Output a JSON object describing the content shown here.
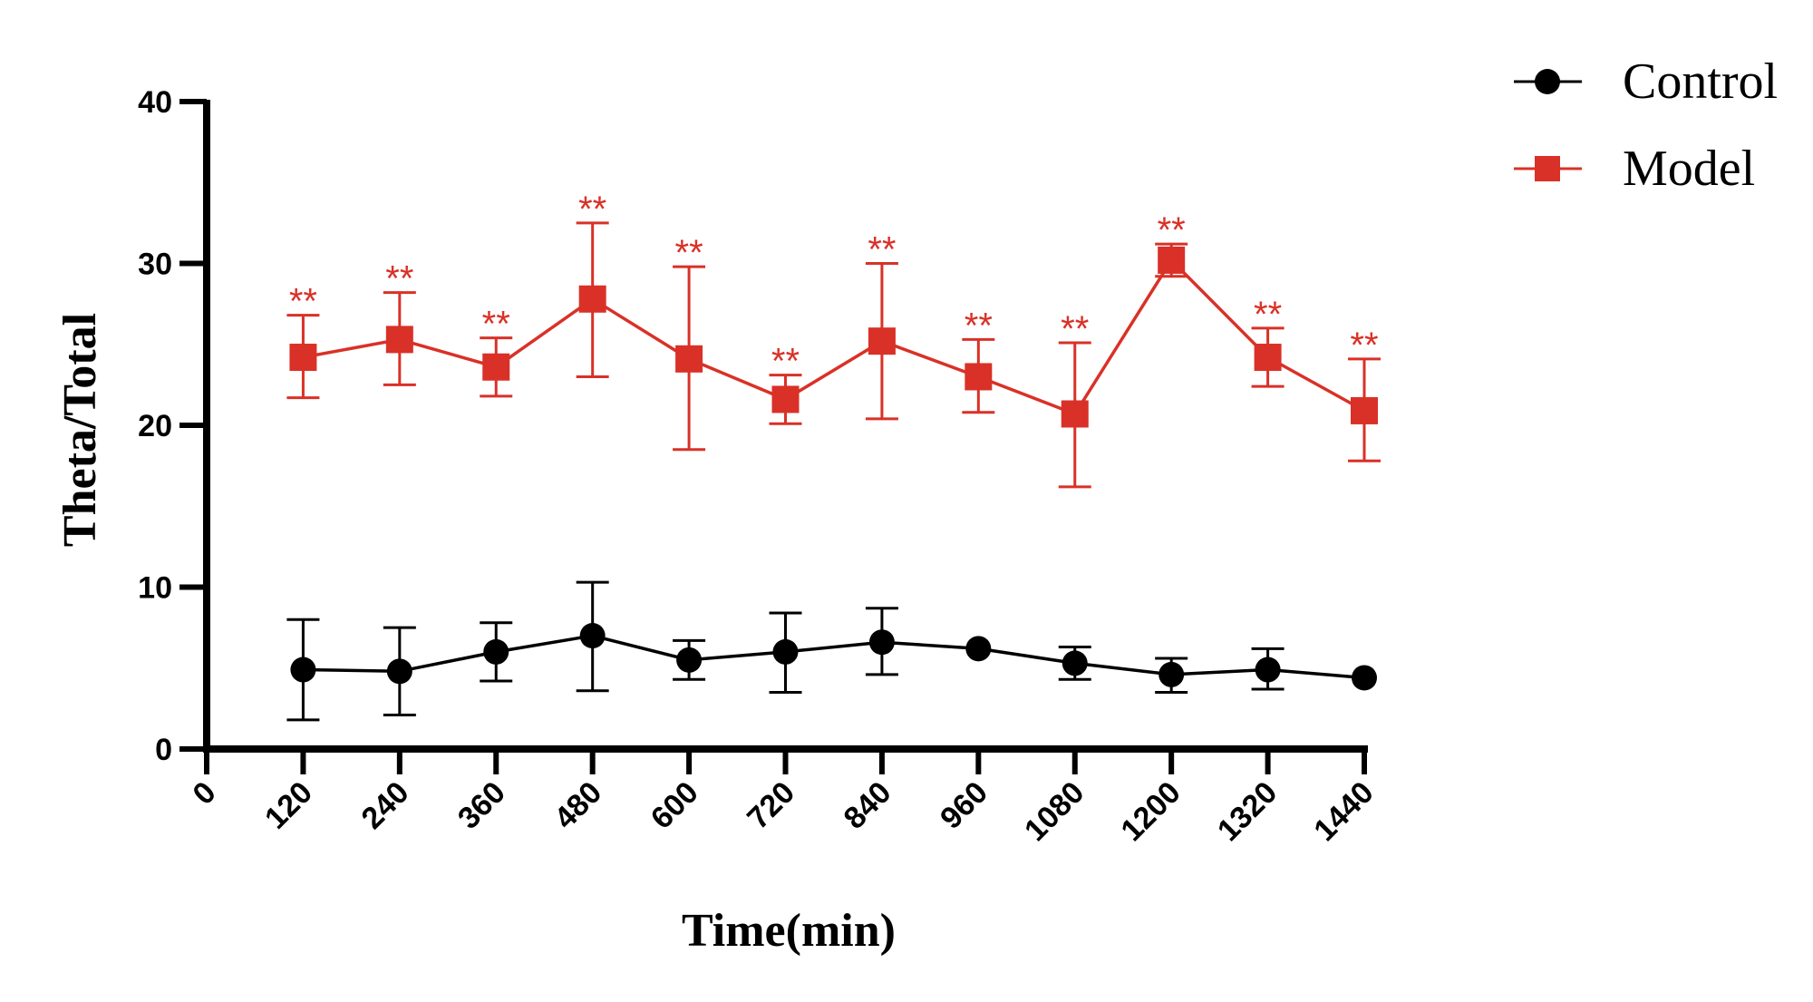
{
  "chart_data": {
    "type": "line",
    "title": "",
    "xlabel": "Time(min)",
    "ylabel": "Theta/Total",
    "xlim": [
      0,
      1440
    ],
    "ylim": [
      0,
      40
    ],
    "x_ticks": [
      "0",
      "120",
      "240",
      "360",
      "480",
      "600",
      "720",
      "840",
      "960",
      "1080",
      "1200",
      "1320",
      "1440"
    ],
    "y_ticks": [
      "0",
      "10",
      "20",
      "30",
      "40"
    ],
    "grid": false,
    "legend_position": "top-right",
    "series": [
      {
        "name": "Control",
        "color": "#000000",
        "marker": "circle",
        "x": [
          120,
          240,
          360,
          480,
          600,
          720,
          840,
          960,
          1080,
          1200,
          1320,
          1440
        ],
        "values": [
          4.9,
          4.8,
          6.0,
          7.0,
          5.5,
          6.0,
          6.6,
          6.2,
          5.3,
          4.6,
          4.9,
          4.4
        ],
        "error_upper": [
          8.0,
          7.5,
          7.8,
          10.3,
          6.7,
          8.4,
          8.7,
          6.2,
          6.3,
          5.6,
          6.2,
          4.4
        ],
        "error_lower": [
          1.8,
          2.1,
          4.2,
          3.6,
          4.3,
          3.5,
          4.6,
          6.2,
          4.3,
          3.5,
          3.7,
          4.4
        ]
      },
      {
        "name": "Model",
        "color": "#d93127",
        "marker": "square",
        "x": [
          120,
          240,
          360,
          480,
          600,
          720,
          840,
          960,
          1080,
          1200,
          1320,
          1440
        ],
        "values": [
          24.2,
          25.3,
          23.6,
          27.8,
          24.1,
          21.6,
          25.2,
          23.0,
          20.7,
          30.2,
          24.2,
          20.9
        ],
        "error_upper": [
          26.8,
          28.2,
          25.4,
          32.5,
          29.8,
          23.1,
          30.0,
          25.3,
          25.1,
          31.2,
          26.0,
          24.1
        ],
        "error_lower": [
          21.7,
          22.5,
          21.8,
          23.0,
          18.5,
          20.1,
          20.4,
          20.8,
          16.2,
          29.2,
          22.4,
          17.8
        ],
        "annotations": [
          "**",
          "**",
          "**",
          "**",
          "**",
          "**",
          "**",
          "**",
          "**",
          "**",
          "**",
          "**"
        ]
      }
    ]
  }
}
